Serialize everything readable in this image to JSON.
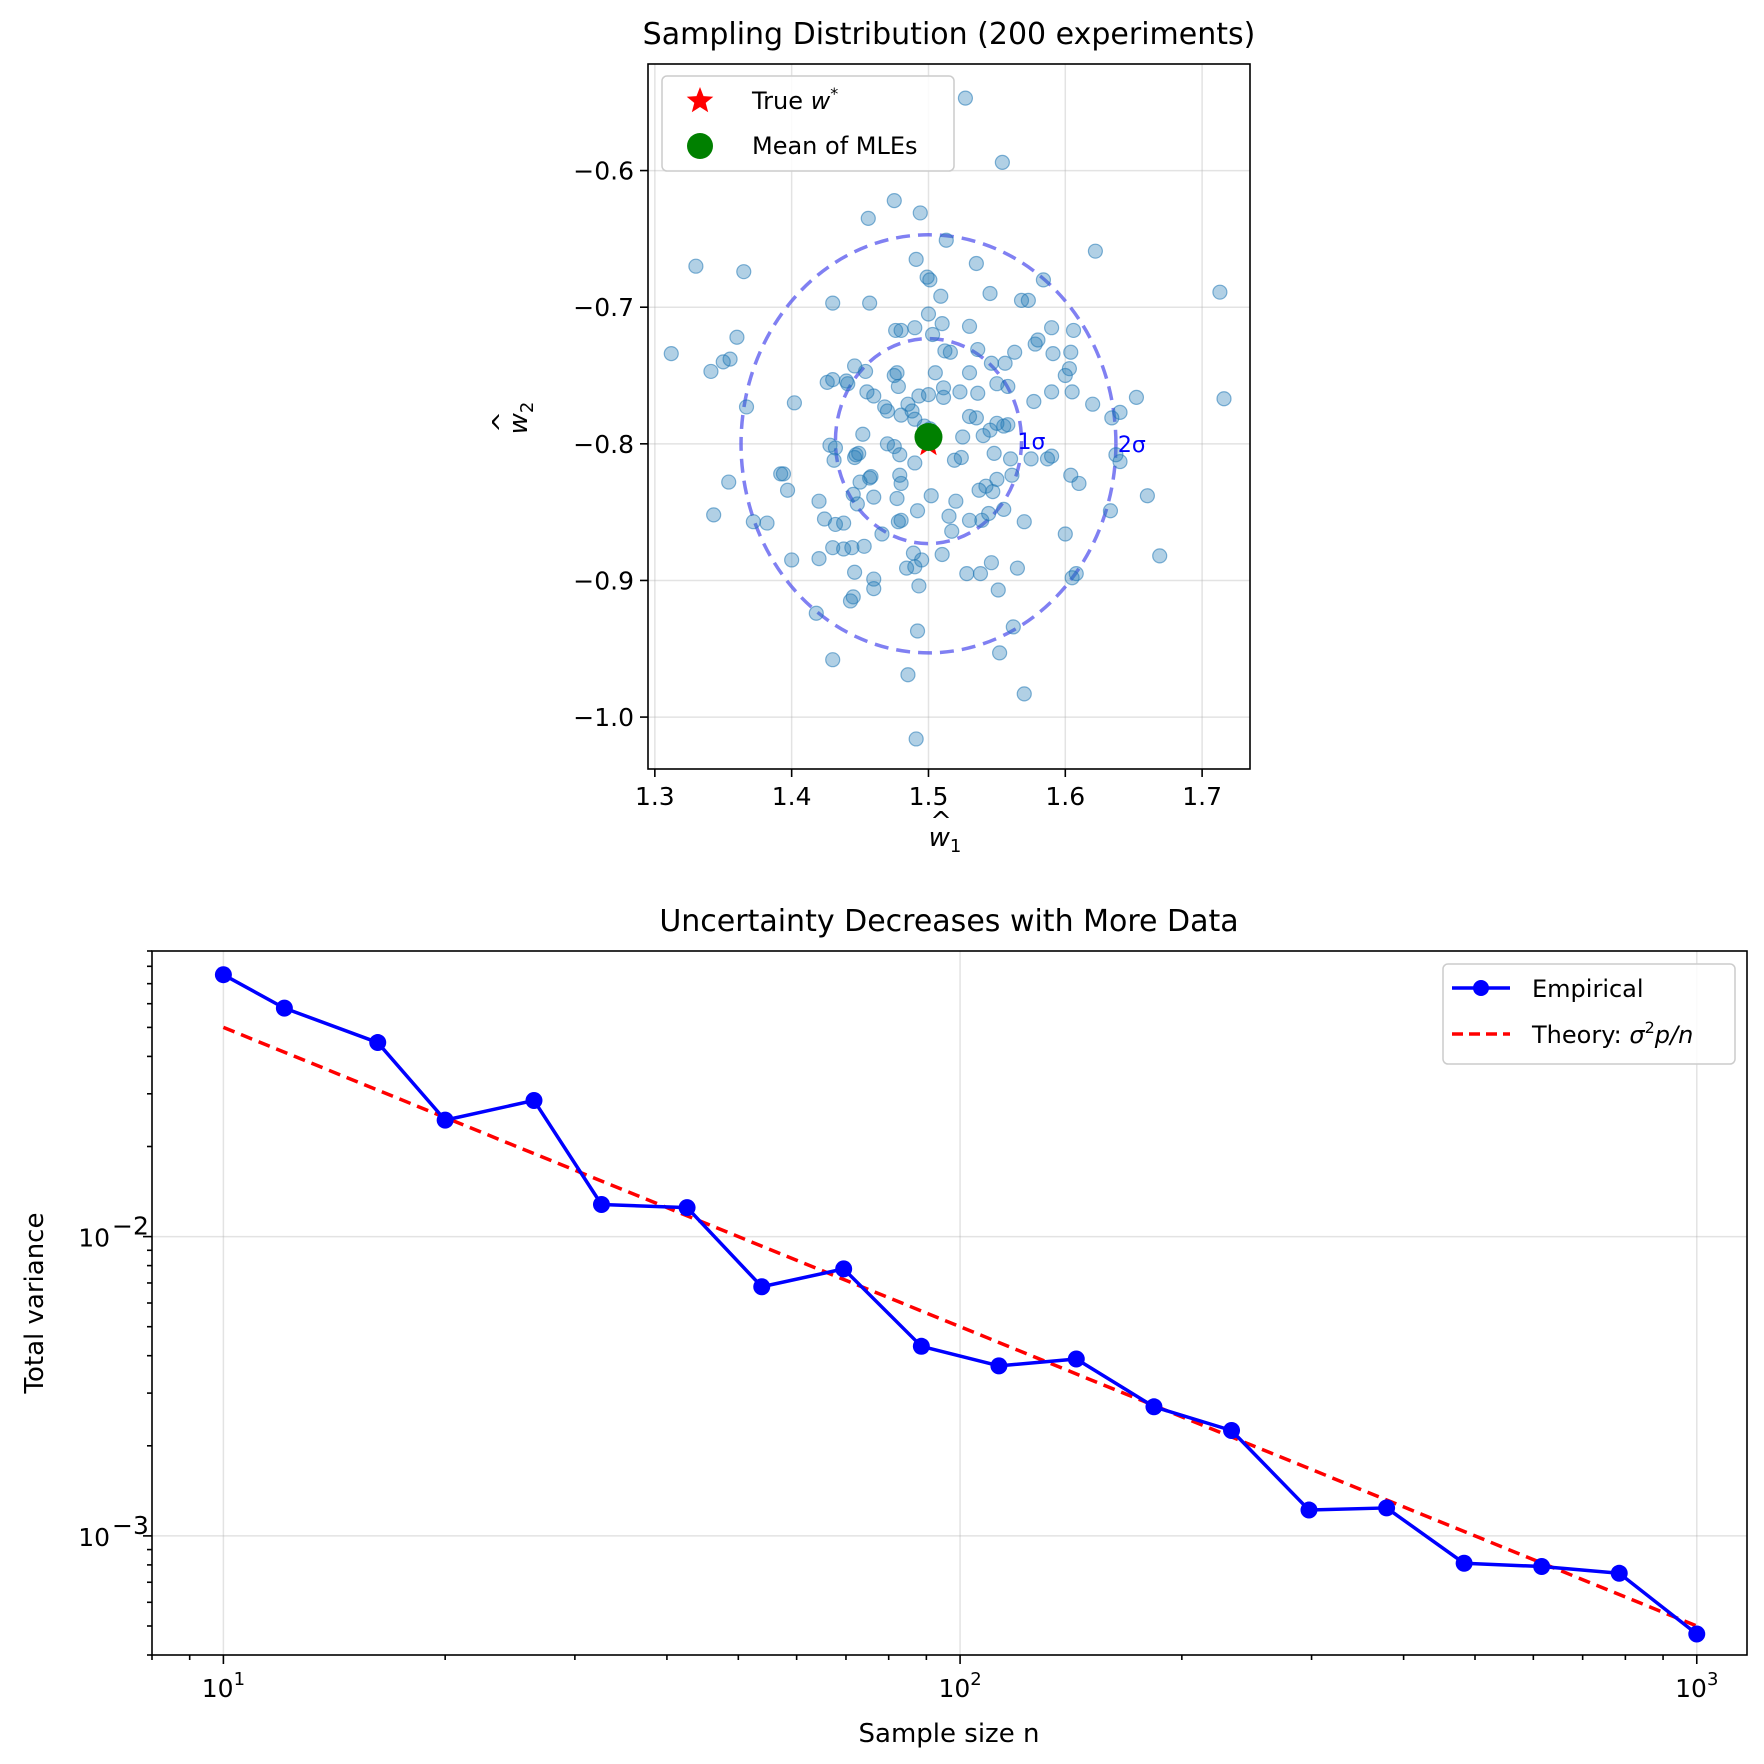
{
  "chart_data": [
    {
      "type": "scatter",
      "title": "Sampling Distribution (200 experiments)",
      "xlabel_base": "w",
      "xlabel_hat": "^",
      "xlabel_sub": "1",
      "ylabel_base": "w",
      "ylabel_hat": "^",
      "ylabel_sub": "2",
      "xlim": [
        1.295,
        1.735
      ],
      "ylim": [
        -1.038,
        -0.522
      ],
      "xticks": [
        1.3,
        1.4,
        1.5,
        1.6,
        1.7
      ],
      "xtick_labels": [
        "1.3",
        "1.4",
        "1.5",
        "1.6",
        "1.7"
      ],
      "yticks": [
        -0.6,
        -0.7,
        -0.8,
        -0.9,
        -1.0
      ],
      "ytick_labels": [
        "−0.6",
        "−0.7",
        "−0.8",
        "−0.9",
        "−1.0"
      ],
      "grid": true,
      "legend_position": "upper-left",
      "legend": [
        {
          "label_prefix": "True ",
          "label_math": "w",
          "label_sup": "*",
          "marker": "star",
          "color": "#ff0000"
        },
        {
          "label_prefix": "Mean of MLEs",
          "marker": "circle",
          "color": "#008000"
        }
      ],
      "true_w": [
        1.5,
        -0.8
      ],
      "mean_mle": [
        1.5,
        -0.795
      ],
      "ellipses": [
        {
          "label": "1σ",
          "center": [
            1.5,
            -0.798
          ],
          "rx": 0.068,
          "ry": 0.075,
          "color": "#5555ee"
        },
        {
          "label": "2σ",
          "center": [
            1.5,
            -0.8
          ],
          "rx": 0.137,
          "ry": 0.153,
          "color": "#5555ee"
        }
      ],
      "point_color": "#1f77b4",
      "points": [
        [
          1.527,
          -0.547
        ],
        [
          1.554,
          -0.594
        ],
        [
          1.475,
          -0.622
        ],
        [
          1.456,
          -0.635
        ],
        [
          1.494,
          -0.631
        ],
        [
          1.33,
          -0.67
        ],
        [
          1.365,
          -0.674
        ],
        [
          1.491,
          -0.665
        ],
        [
          1.499,
          -0.678
        ],
        [
          1.501,
          -0.68
        ],
        [
          1.513,
          -0.651
        ],
        [
          1.535,
          -0.668
        ],
        [
          1.622,
          -0.659
        ],
        [
          1.584,
          -0.68
        ],
        [
          1.568,
          -0.695
        ],
        [
          1.573,
          -0.695
        ],
        [
          1.713,
          -0.689
        ],
        [
          1.43,
          -0.697
        ],
        [
          1.457,
          -0.697
        ],
        [
          1.509,
          -0.692
        ],
        [
          1.545,
          -0.69
        ],
        [
          1.49,
          -0.715
        ],
        [
          1.5,
          -0.705
        ],
        [
          1.51,
          -0.712
        ],
        [
          1.476,
          -0.717
        ],
        [
          1.48,
          -0.717
        ],
        [
          1.53,
          -0.714
        ],
        [
          1.58,
          -0.724
        ],
        [
          1.59,
          -0.715
        ],
        [
          1.606,
          -0.717
        ],
        [
          1.312,
          -0.734
        ],
        [
          1.355,
          -0.738
        ],
        [
          1.36,
          -0.722
        ],
        [
          1.35,
          -0.74
        ],
        [
          1.341,
          -0.747
        ],
        [
          1.503,
          -0.72
        ],
        [
          1.512,
          -0.732
        ],
        [
          1.516,
          -0.733
        ],
        [
          1.536,
          -0.731
        ],
        [
          1.563,
          -0.733
        ],
        [
          1.578,
          -0.727
        ],
        [
          1.591,
          -0.734
        ],
        [
          1.556,
          -0.741
        ],
        [
          1.604,
          -0.733
        ],
        [
          1.446,
          -0.743
        ],
        [
          1.454,
          -0.747
        ],
        [
          1.477,
          -0.748
        ],
        [
          1.505,
          -0.748
        ],
        [
          1.53,
          -0.748
        ],
        [
          1.546,
          -0.741
        ],
        [
          1.603,
          -0.745
        ],
        [
          1.426,
          -0.755
        ],
        [
          1.43,
          -0.753
        ],
        [
          1.44,
          -0.754
        ],
        [
          1.441,
          -0.756
        ],
        [
          1.475,
          -0.75
        ],
        [
          1.478,
          -0.758
        ],
        [
          1.455,
          -0.762
        ],
        [
          1.46,
          -0.765
        ],
        [
          1.511,
          -0.759
        ],
        [
          1.536,
          -0.763
        ],
        [
          1.523,
          -0.762
        ],
        [
          1.55,
          -0.756
        ],
        [
          1.558,
          -0.758
        ],
        [
          1.511,
          -0.766
        ],
        [
          1.59,
          -0.762
        ],
        [
          1.605,
          -0.762
        ],
        [
          1.62,
          -0.771
        ],
        [
          1.577,
          -0.769
        ],
        [
          1.652,
          -0.766
        ],
        [
          1.367,
          -0.773
        ],
        [
          1.402,
          -0.77
        ],
        [
          1.468,
          -0.773
        ],
        [
          1.48,
          -0.779
        ],
        [
          1.485,
          -0.771
        ],
        [
          1.488,
          -0.776
        ],
        [
          1.47,
          -0.776
        ],
        [
          1.49,
          -0.782
        ],
        [
          1.493,
          -0.765
        ],
        [
          1.5,
          -0.764
        ],
        [
          1.535,
          -0.781
        ],
        [
          1.55,
          -0.785
        ],
        [
          1.558,
          -0.786
        ],
        [
          1.634,
          -0.781
        ],
        [
          1.64,
          -0.777
        ],
        [
          1.716,
          -0.767
        ],
        [
          1.452,
          -0.793
        ],
        [
          1.497,
          -0.787
        ],
        [
          1.501,
          -0.789
        ],
        [
          1.525,
          -0.795
        ],
        [
          1.54,
          -0.794
        ],
        [
          1.545,
          -0.79
        ],
        [
          1.555,
          -0.787
        ],
        [
          1.428,
          -0.801
        ],
        [
          1.432,
          -0.803
        ],
        [
          1.447,
          -0.808
        ],
        [
          1.449,
          -0.807
        ],
        [
          1.47,
          -0.8
        ],
        [
          1.475,
          -0.802
        ],
        [
          1.519,
          -0.812
        ],
        [
          1.524,
          -0.81
        ],
        [
          1.548,
          -0.807
        ],
        [
          1.56,
          -0.811
        ],
        [
          1.575,
          -0.811
        ],
        [
          1.587,
          -0.811
        ],
        [
          1.59,
          -0.809
        ],
        [
          1.637,
          -0.808
        ],
        [
          1.64,
          -0.813
        ],
        [
          1.431,
          -0.812
        ],
        [
          1.446,
          -0.81
        ],
        [
          1.479,
          -0.808
        ],
        [
          1.49,
          -0.814
        ],
        [
          1.55,
          -0.826
        ],
        [
          1.561,
          -0.823
        ],
        [
          1.392,
          -0.822
        ],
        [
          1.394,
          -0.822
        ],
        [
          1.457,
          -0.825
        ],
        [
          1.458,
          -0.824
        ],
        [
          1.479,
          -0.823
        ],
        [
          1.45,
          -0.828
        ],
        [
          1.48,
          -0.829
        ],
        [
          1.542,
          -0.831
        ],
        [
          1.604,
          -0.823
        ],
        [
          1.61,
          -0.829
        ],
        [
          1.354,
          -0.828
        ],
        [
          1.397,
          -0.834
        ],
        [
          1.445,
          -0.837
        ],
        [
          1.448,
          -0.844
        ],
        [
          1.477,
          -0.84
        ],
        [
          1.46,
          -0.839
        ],
        [
          1.502,
          -0.838
        ],
        [
          1.52,
          -0.842
        ],
        [
          1.537,
          -0.834
        ],
        [
          1.547,
          -0.835
        ],
        [
          1.66,
          -0.838
        ],
        [
          1.343,
          -0.852
        ],
        [
          1.372,
          -0.857
        ],
        [
          1.382,
          -0.858
        ],
        [
          1.42,
          -0.842
        ],
        [
          1.424,
          -0.855
        ],
        [
          1.432,
          -0.859
        ],
        [
          1.438,
          -0.858
        ],
        [
          1.492,
          -0.849
        ],
        [
          1.515,
          -0.853
        ],
        [
          1.53,
          -0.856
        ],
        [
          1.539,
          -0.856
        ],
        [
          1.544,
          -0.851
        ],
        [
          1.555,
          -0.848
        ],
        [
          1.57,
          -0.857
        ],
        [
          1.633,
          -0.849
        ],
        [
          1.478,
          -0.857
        ],
        [
          1.48,
          -0.856
        ],
        [
          1.517,
          -0.864
        ],
        [
          1.6,
          -0.866
        ],
        [
          1.43,
          -0.876
        ],
        [
          1.438,
          -0.877
        ],
        [
          1.444,
          -0.876
        ],
        [
          1.453,
          -0.875
        ],
        [
          1.489,
          -0.88
        ],
        [
          1.51,
          -0.881
        ],
        [
          1.466,
          -0.866
        ],
        [
          1.4,
          -0.885
        ],
        [
          1.42,
          -0.884
        ],
        [
          1.495,
          -0.885
        ],
        [
          1.49,
          -0.89
        ],
        [
          1.484,
          -0.891
        ],
        [
          1.546,
          -0.887
        ],
        [
          1.669,
          -0.882
        ],
        [
          1.446,
          -0.894
        ],
        [
          1.528,
          -0.895
        ],
        [
          1.538,
          -0.895
        ],
        [
          1.565,
          -0.891
        ],
        [
          1.608,
          -0.895
        ],
        [
          1.605,
          -0.898
        ],
        [
          1.46,
          -0.899
        ],
        [
          1.46,
          -0.906
        ],
        [
          1.493,
          -0.904
        ],
        [
          1.551,
          -0.907
        ],
        [
          1.445,
          -0.912
        ],
        [
          1.443,
          -0.915
        ],
        [
          1.418,
          -0.924
        ],
        [
          1.562,
          -0.934
        ],
        [
          1.492,
          -0.937
        ],
        [
          1.552,
          -0.953
        ],
        [
          1.43,
          -0.958
        ],
        [
          1.485,
          -0.969
        ],
        [
          1.57,
          -0.983
        ],
        [
          1.491,
          -1.016
        ],
        [
          1.6,
          -0.75
        ],
        [
          1.53,
          -0.78
        ]
      ]
    },
    {
      "type": "line",
      "title": "Uncertainty Decreases with More Data",
      "xlabel": "Sample size n",
      "ylabel": "Total variance",
      "xscale": "log",
      "yscale": "log",
      "xlim": [
        8.0,
        1170
      ],
      "ylim": [
        0.0004,
        0.09
      ],
      "xtick_major": [
        10,
        100,
        1000
      ],
      "xtick_major_base": "10",
      "xtick_major_exp": [
        "1",
        "2",
        "3"
      ],
      "ytick_major": [
        0.01,
        0.001
      ],
      "ytick_major_base": "10",
      "ytick_major_exp": [
        "−2",
        "−3"
      ],
      "grid": true,
      "legend_position": "upper-right",
      "series": [
        {
          "name": "Empirical",
          "style": "solid-with-markers",
          "color": "#0000ff",
          "x": [
            10,
            12.1,
            16.2,
            20,
            26.4,
            32.6,
            42.6,
            53.8,
            69.5,
            88.6,
            112.9,
            143.8,
            183.3,
            233.6,
            297.6,
            379.3,
            483.3,
            615.8,
            784.8,
            1000
          ],
          "y": [
            0.075,
            0.058,
            0.0445,
            0.0245,
            0.0285,
            0.0128,
            0.0125,
            0.0068,
            0.0078,
            0.0043,
            0.0037,
            0.0039,
            0.0027,
            0.00225,
            0.00122,
            0.00124,
            0.00081,
            0.00079,
            0.00075,
            0.00047
          ]
        },
        {
          "name_prefix": "Theory: ",
          "name_sigma": "σ",
          "name_sup": "2",
          "name_suffix": "p/n",
          "style": "dashed",
          "color": "#ff0000",
          "x": [
            10,
            1000
          ],
          "y": [
            0.05,
            0.0005
          ]
        }
      ]
    }
  ]
}
